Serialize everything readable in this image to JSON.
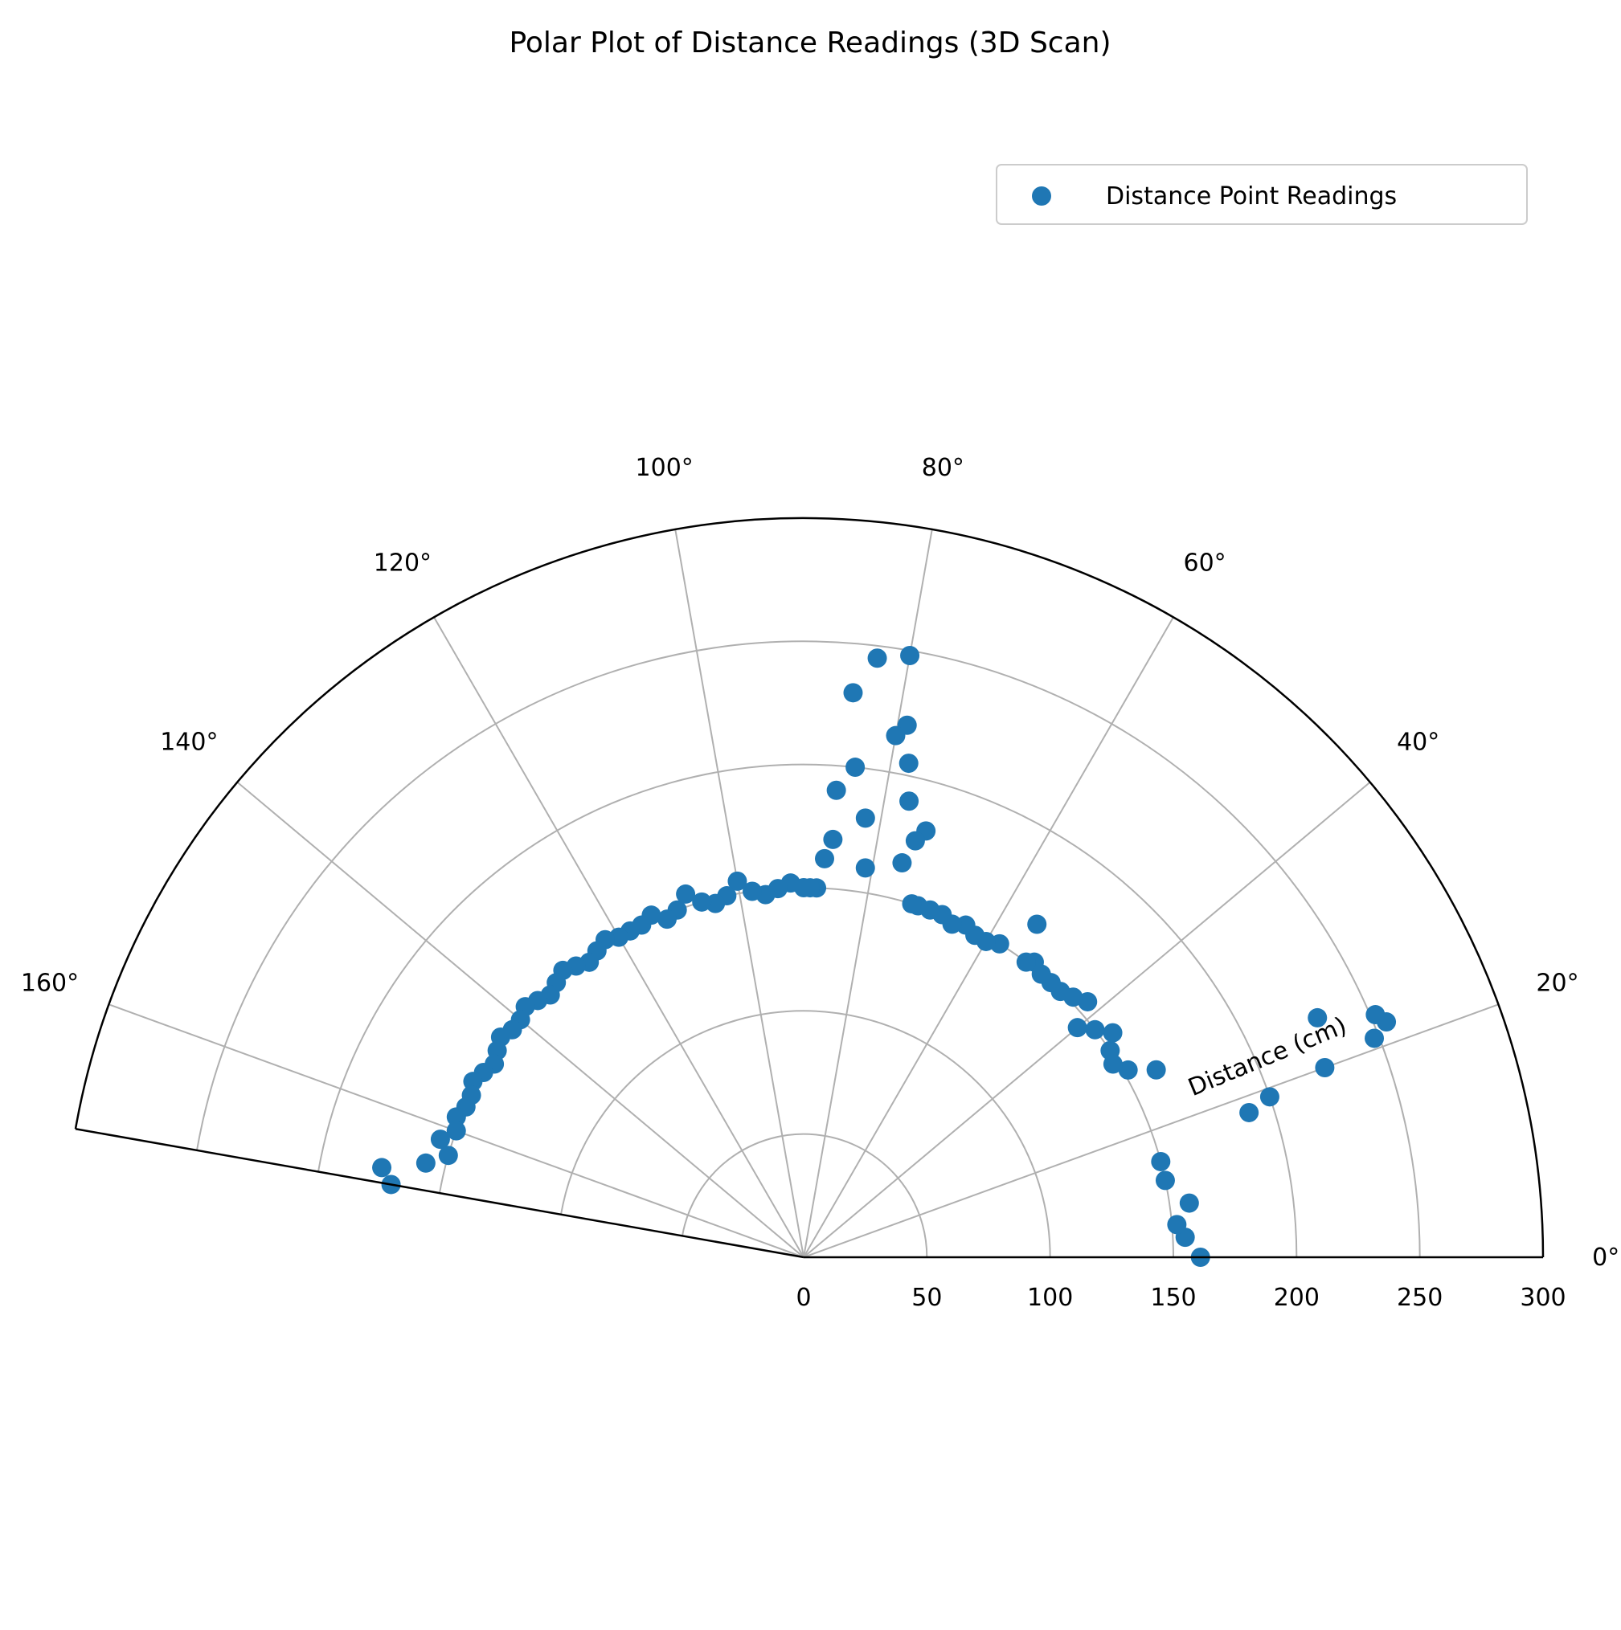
{
  "chart_data": {
    "type": "scatter",
    "projection": "polar",
    "title": "Polar Plot of Distance Readings (3D Scan)",
    "radial_axis_label": "Distance (cm)",
    "angle_range_deg": [
      0,
      170
    ],
    "radial_range": [
      0,
      300
    ],
    "angle_ticks": [
      "0°",
      "20°",
      "40°",
      "60°",
      "80°",
      "100°",
      "120°",
      "140°",
      "160°"
    ],
    "radial_ticks": [
      "0",
      "50",
      "100",
      "150",
      "200",
      "250",
      "300"
    ],
    "grid": true,
    "legend": {
      "position": "upper-right"
    },
    "colors": {
      "series": "#1f77b4",
      "grid": "#b0b0b0",
      "frame": "#000000"
    },
    "series": [
      {
        "name": "Distance Point Readings",
        "angle_deg": [
          0,
          3,
          5,
          8,
          12,
          15,
          18,
          19,
          20,
          21,
          22,
          23,
          25,
          28,
          30,
          32,
          34,
          36,
          38,
          40,
          42,
          44,
          46,
          48,
          50,
          52,
          53,
          55,
          58,
          60,
          62,
          64,
          66,
          68,
          70,
          72,
          73,
          74,
          75,
          76,
          77,
          78,
          79,
          80,
          80,
          81,
          82,
          83,
          84,
          85,
          86,
          86,
          87,
          88,
          89,
          90,
          92,
          94,
          96,
          98,
          100,
          102,
          104,
          106,
          108,
          110,
          112,
          114,
          116,
          118,
          120,
          122,
          124,
          126,
          128,
          130,
          132,
          134,
          136,
          138,
          140,
          142,
          144,
          146,
          148,
          150,
          152,
          154,
          156,
          158,
          160,
          162,
          164,
          166,
          168,
          170
        ],
        "distance_cm": [
          161,
          155,
          152,
          158,
          150,
          150,
          190,
          200,
          225,
          248,
          255,
          252,
          230,
          162,
          152,
          148,
          150,
          155,
          150,
          145,
          155,
          152,
          150,
          150,
          150,
          152,
          150,
          165,
          150,
          148,
          148,
          150,
          148,
          150,
          150,
          150,
          150,
          180,
          175,
          165,
          190,
          205,
          220,
          248,
          215,
          160,
          180,
          245,
          200,
          230,
          170,
          190,
          162,
          150,
          150,
          150,
          152,
          150,
          148,
          150,
          155,
          150,
          148,
          150,
          155,
          150,
          148,
          152,
          150,
          150,
          150,
          152,
          150,
          148,
          150,
          152,
          150,
          148,
          150,
          152,
          150,
          150,
          152,
          150,
          148,
          150,
          152,
          150,
          150,
          152,
          150,
          155,
          150,
          158,
          175,
          170
        ]
      }
    ]
  }
}
